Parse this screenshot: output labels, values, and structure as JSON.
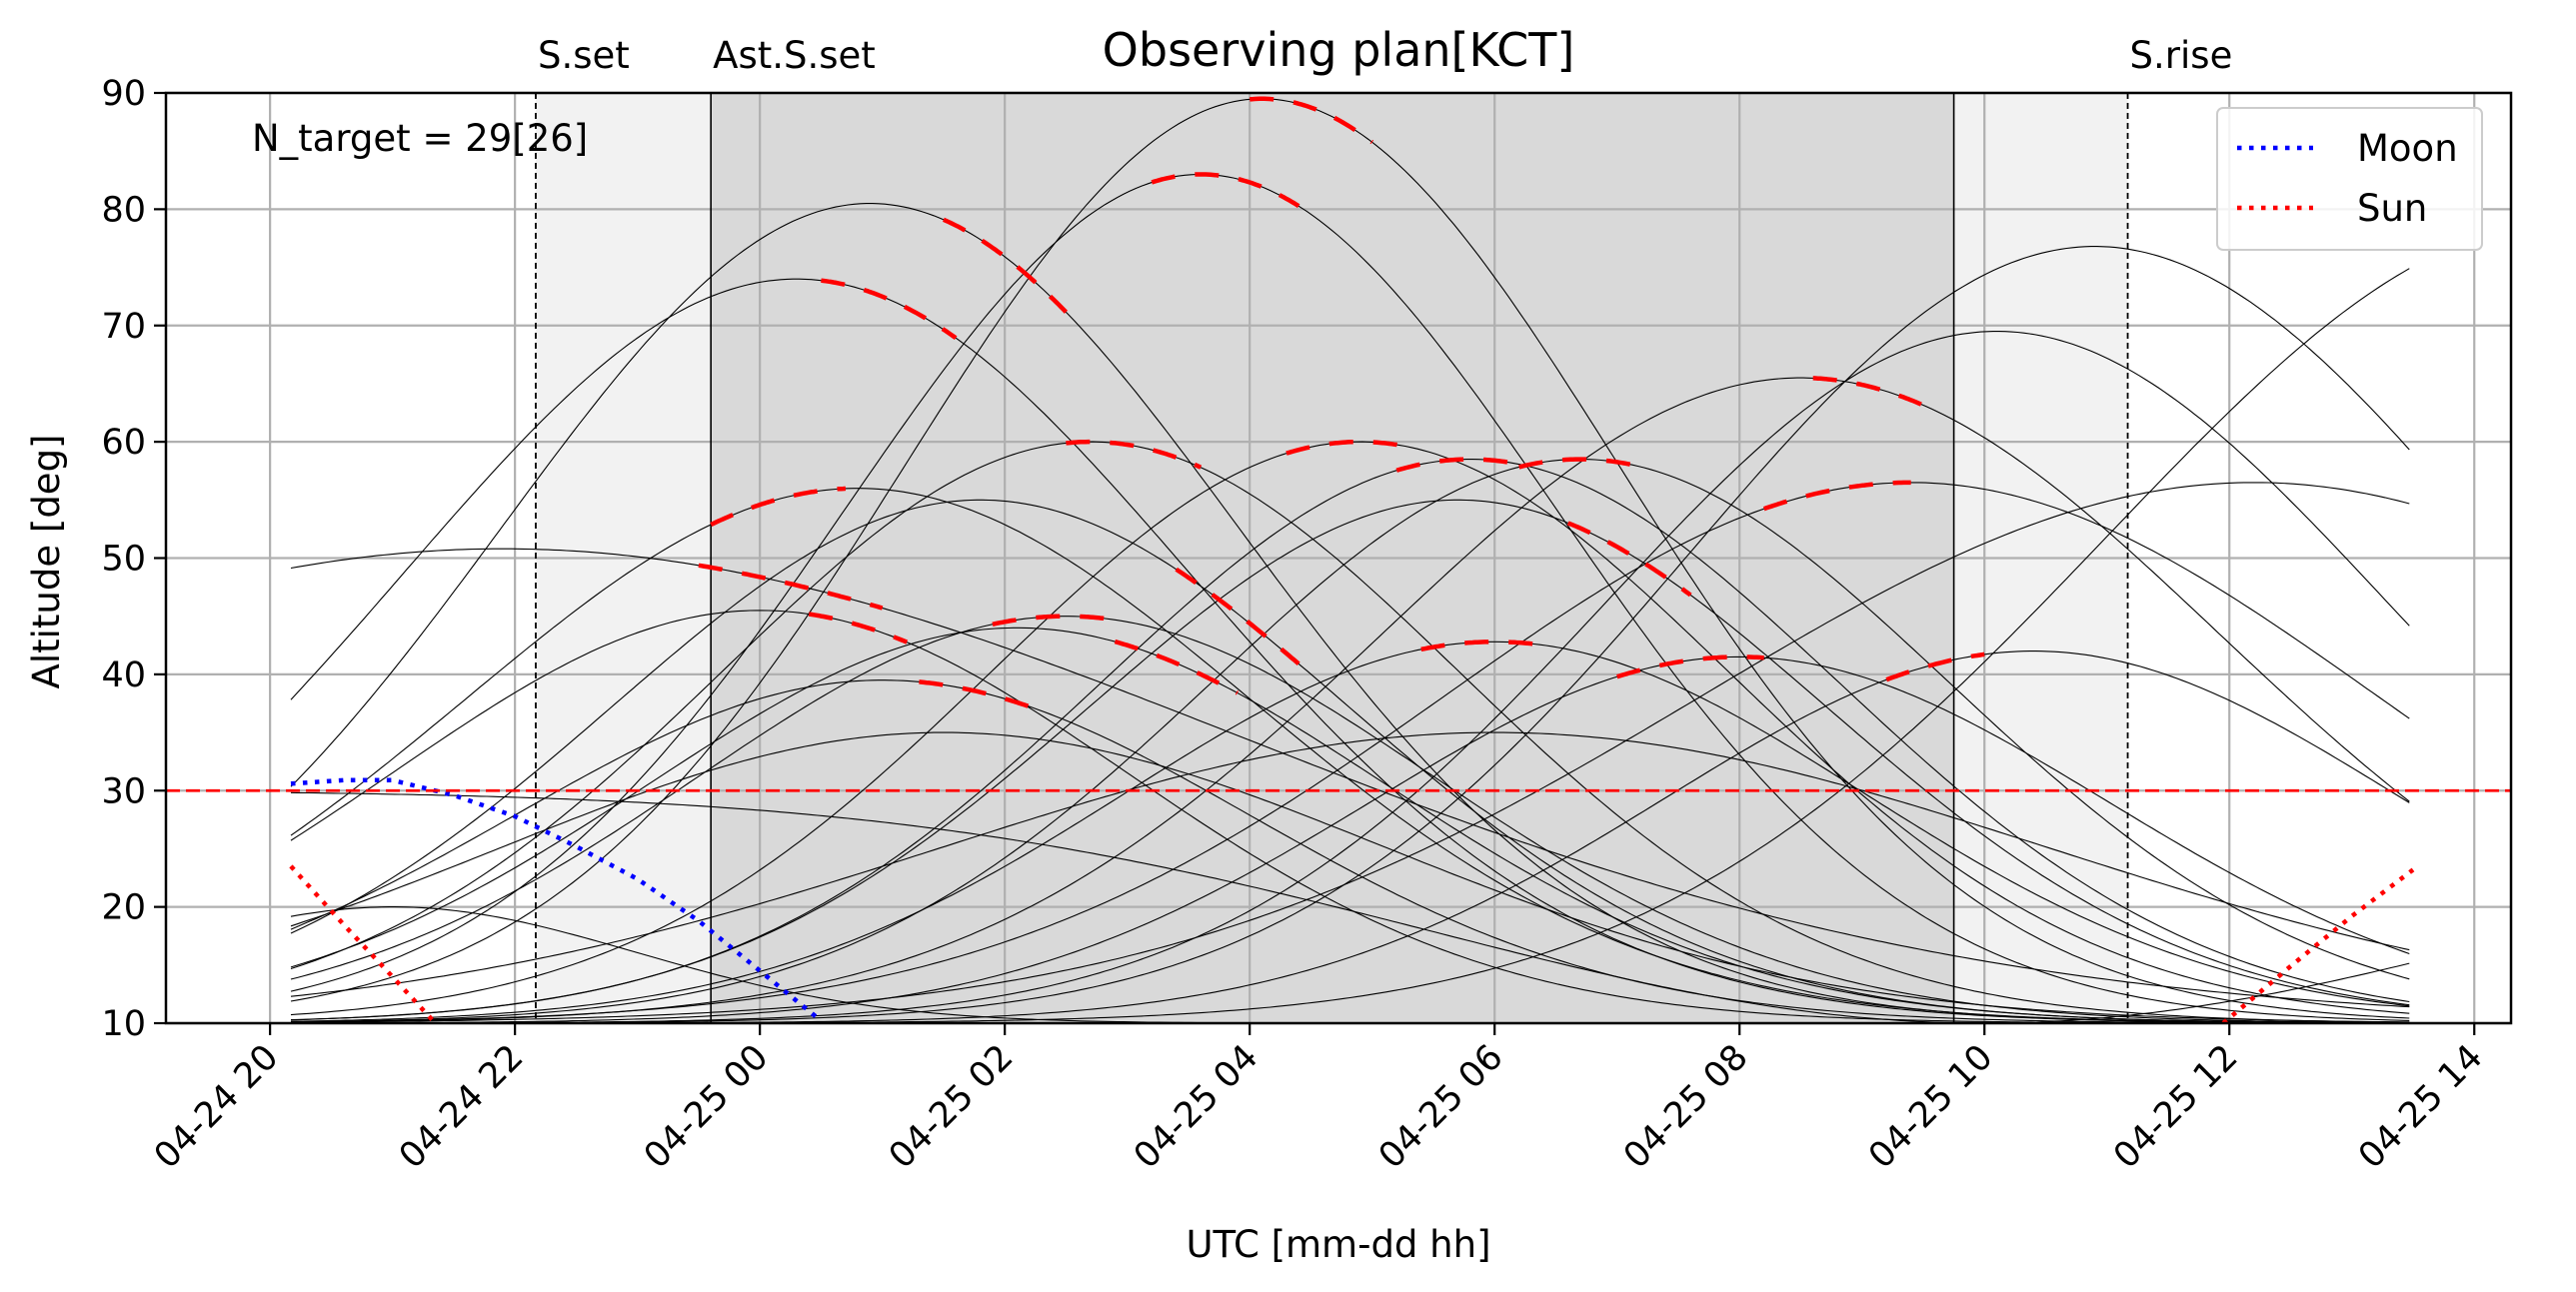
{
  "chart_data": {
    "type": "line",
    "title": "Observing plan[KCT]",
    "xlabel": "UTC [mm-dd hh]",
    "ylabel": "Altitude [deg]",
    "xlim": [
      -0.85,
      18.3
    ],
    "ylim": [
      10,
      90
    ],
    "grid": true,
    "legend_position": "top-right",
    "x_tick_labels": [
      {
        "x": 0,
        "label": "04-24 20"
      },
      {
        "x": 2,
        "label": "04-24 22"
      },
      {
        "x": 4,
        "label": "04-25 00"
      },
      {
        "x": 6,
        "label": "04-25 02"
      },
      {
        "x": 8,
        "label": "04-25 04"
      },
      {
        "x": 10,
        "label": "04-25 06"
      },
      {
        "x": 12,
        "label": "04-25 08"
      },
      {
        "x": 14,
        "label": "04-25 10"
      },
      {
        "x": 16,
        "label": "04-25 12"
      },
      {
        "x": 18,
        "label": "04-25 14"
      }
    ],
    "y_ticks": [
      10,
      20,
      30,
      40,
      50,
      60,
      70,
      80,
      90
    ],
    "annotation": "N_target = 29[26]",
    "altitude_limit": {
      "value": 30,
      "color": "#ff0000"
    },
    "twilight_markers": [
      {
        "label": "S.set",
        "x": 2.17,
        "style": "dashed"
      },
      {
        "label": "Ast.S.set",
        "x": 3.6,
        "style": "solid"
      },
      {
        "label": "",
        "x": 13.75,
        "style": "solid"
      },
      {
        "label": "S.rise",
        "x": 15.17,
        "style": "dashed"
      }
    ],
    "shaded_regions": [
      {
        "from": 2.17,
        "to": 15.17,
        "color": "#f2f2f2"
      },
      {
        "from": 3.6,
        "to": 13.75,
        "color": "#d9d9d9"
      }
    ],
    "time_range": [
      0.17,
      17.5
    ],
    "series": [
      {
        "name": "Moon",
        "color": "#0000ff",
        "style": "dotted",
        "points": [
          [
            0.17,
            30.6
          ],
          [
            0.6,
            30.9
          ],
          [
            1.0,
            30.9
          ],
          [
            1.5,
            29.6
          ],
          [
            2.0,
            27.8
          ],
          [
            2.5,
            25.2
          ],
          [
            3.0,
            22.4
          ],
          [
            3.5,
            18.8
          ],
          [
            4.0,
            14.5
          ],
          [
            4.5,
            10.2
          ]
        ]
      },
      {
        "name": "Sun",
        "color": "#ff0000",
        "style": "dotted",
        "points": [
          [
            0.17,
            23.5
          ],
          [
            0.6,
            18.5
          ],
          [
            1.0,
            14.0
          ],
          [
            1.35,
            10.0
          ],
          [
            15.95,
            10.0
          ],
          [
            16.5,
            14.9
          ],
          [
            17.0,
            19.2
          ],
          [
            17.5,
            23.2
          ]
        ]
      }
    ],
    "targets": [
      {
        "peak_x": 4.3,
        "peak_alt": 74,
        "sigma": 3.2,
        "obs": [
          4.5,
          5.6
        ]
      },
      {
        "peak_x": 4.9,
        "peak_alt": 80.5,
        "sigma": 3.0,
        "obs": [
          5.5,
          6.5
        ]
      },
      {
        "peak_x": 8.1,
        "peak_alt": 89.5,
        "sigma": 2.9,
        "obs": [
          8.0,
          9.0
        ]
      },
      {
        "peak_x": 7.6,
        "peak_alt": 83,
        "sigma": 2.9,
        "obs": [
          7.2,
          8.4
        ]
      },
      {
        "peak_x": 4.8,
        "peak_alt": 56,
        "sigma": 3.2,
        "obs": [
          3.6,
          4.7
        ]
      },
      {
        "peak_x": 1.9,
        "peak_alt": 50.8,
        "sigma": 6.0,
        "obs": [
          3.5,
          5.0
        ]
      },
      {
        "peak_x": 6.7,
        "peak_alt": 60,
        "sigma": 3.0,
        "obs": [
          6.5,
          7.6
        ]
      },
      {
        "peak_x": 5.8,
        "peak_alt": 55,
        "sigma": 3.0,
        "obs": [
          7.4,
          8.4
        ]
      },
      {
        "peak_x": 8.9,
        "peak_alt": 60,
        "sigma": 3.0,
        "obs": [
          8.3,
          9.3
        ]
      },
      {
        "peak_x": 9.8,
        "peak_alt": 58.5,
        "sigma": 3.0,
        "obs": [
          9.2,
          10.2
        ]
      },
      {
        "peak_x": 10.7,
        "peak_alt": 58.5,
        "sigma": 3.0,
        "obs": [
          10.2,
          11.2
        ]
      },
      {
        "peak_x": 9.7,
        "peak_alt": 55,
        "sigma": 3.0,
        "obs": [
          10.6,
          11.6
        ]
      },
      {
        "peak_x": 12.5,
        "peak_alt": 65.5,
        "sigma": 3.4,
        "obs": [
          12.6,
          13.5
        ]
      },
      {
        "peak_x": 13.4,
        "peak_alt": 56.5,
        "sigma": 3.8,
        "obs": [
          12.2,
          13.4
        ]
      },
      {
        "peak_x": 4.0,
        "peak_alt": 45.5,
        "sigma": 3.0,
        "obs": [
          4.4,
          5.2
        ]
      },
      {
        "peak_x": 5.0,
        "peak_alt": 39.5,
        "sigma": 3.0,
        "obs": [
          5.3,
          6.3
        ]
      },
      {
        "peak_x": 6.5,
        "peak_alt": 45,
        "sigma": 3.0,
        "obs": [
          5.9,
          6.9
        ]
      },
      {
        "peak_x": 6.1,
        "peak_alt": 44,
        "sigma": 3.0,
        "obs": [
          6.9,
          7.9
        ]
      },
      {
        "peak_x": 10.0,
        "peak_alt": 42.8,
        "sigma": 3.0,
        "obs": [
          9.4,
          10.4
        ]
      },
      {
        "peak_x": 12.0,
        "peak_alt": 41.5,
        "sigma": 3.0,
        "obs": [
          11.0,
          12.2
        ]
      },
      {
        "peak_x": 14.4,
        "peak_alt": 42.0,
        "sigma": 3.0,
        "obs": [
          13.2,
          14.0
        ]
      },
      {
        "peak_x": 14.9,
        "peak_alt": 76.8,
        "sigma": 3.3,
        "obs": []
      },
      {
        "peak_x": 14.1,
        "peak_alt": 69.5,
        "sigma": 3.2,
        "obs": []
      },
      {
        "peak_x": 16.2,
        "peak_alt": 56.5,
        "sigma": 4.5,
        "obs": []
      },
      {
        "peak_x": 18.8,
        "peak_alt": 79,
        "sigma": 3.8,
        "obs": []
      },
      {
        "peak_x": 14.0,
        "peak_alt": 10,
        "sigma": -4.5,
        "obs": []
      },
      {
        "peak_x": 1.0,
        "peak_alt": 20,
        "sigma": 2.0,
        "obs": []
      },
      {
        "peak_x": 10.0,
        "peak_alt": 35,
        "sigma": 4.5,
        "obs": []
      },
      {
        "peak_x": 5.5,
        "peak_alt": 35.0,
        "sigma": 3.6,
        "obs": []
      }
    ]
  }
}
